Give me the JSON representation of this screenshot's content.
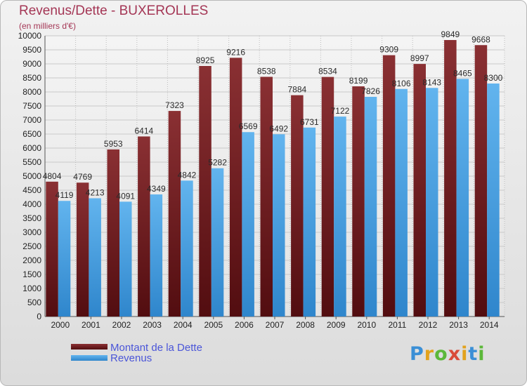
{
  "chart_data": {
    "type": "bar",
    "title": "Revenus/Dette - BUXEROLLES",
    "subtitle": "(en milliers d'€)",
    "categories": [
      "2000",
      "2001",
      "2002",
      "2003",
      "2004",
      "2005",
      "2006",
      "2007",
      "2008",
      "2009",
      "2010",
      "2011",
      "2012",
      "2013",
      "2014"
    ],
    "series": [
      {
        "name": "Montant de la Dette",
        "color": "#7a2426",
        "values": [
          4804,
          4769,
          5953,
          6414,
          7323,
          8925,
          9216,
          8538,
          7884,
          8534,
          8199,
          9309,
          8997,
          9849,
          9668
        ]
      },
      {
        "name": "Revenus",
        "color": "#4da6e8",
        "values": [
          4119,
          4213,
          4091,
          4349,
          4842,
          5282,
          6569,
          6492,
          6731,
          7122,
          7826,
          8106,
          8143,
          8465,
          8300
        ]
      }
    ],
    "ylim": [
      0,
      10000
    ],
    "yticks": [
      0,
      500,
      1000,
      1500,
      2000,
      2500,
      3000,
      3500,
      4000,
      4500,
      5000,
      5500,
      6000,
      6500,
      7000,
      7500,
      8000,
      8500,
      9000,
      9500,
      10000
    ],
    "grid": true,
    "legend_position": "bottom-left"
  },
  "legend": {
    "debt_label": "Montant de la Dette",
    "revenue_label": "Revenus"
  },
  "logo": {
    "letters": [
      "P",
      "r",
      "o",
      "x",
      "i",
      "t",
      "i"
    ],
    "colors": [
      "#3a8fd6",
      "#e2a21d",
      "#5cb83a",
      "#d94c3a",
      "#e2a21d",
      "#3a8fd6",
      "#5cb83a"
    ]
  }
}
